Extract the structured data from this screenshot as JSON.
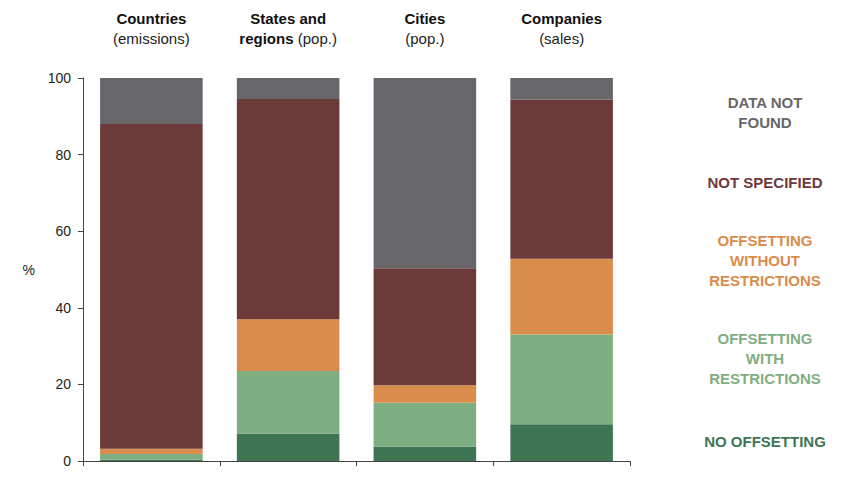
{
  "chart_data": {
    "type": "bar",
    "stacked": true,
    "legend": "right",
    "grid": false,
    "ylabel": "%",
    "categories": [
      "Countries\n(emissions)",
      "States and\nregions (pop.)",
      "Cities\n(pop.)",
      "Companies\n(sales)"
    ],
    "ylim": [
      0,
      100
    ],
    "yticks": [
      0,
      20,
      40,
      60,
      80,
      100
    ],
    "series": [
      {
        "name": "NO OFFSETTING",
        "color": "#3e7553",
        "values": [
          0.3,
          7.2,
          3.8,
          9.6
        ]
      },
      {
        "name": "OFFSETTING\nWITH\nRESTRICTIONS",
        "color": "#80ae83",
        "values": [
          1.5,
          16.3,
          11.4,
          23.4
        ]
      },
      {
        "name": "OFFSETTING\nWITHOUT\nRESTRICTIONS",
        "color": "#d98c4c",
        "values": [
          1.4,
          13.5,
          4.6,
          19.8
        ]
      },
      {
        "name": "NOT SPECIFIED",
        "color": "#6d3a3a",
        "values": [
          84.8,
          57.5,
          30.5,
          41.6
        ]
      },
      {
        "name": "DATA NOT\nFOUND",
        "color": "#67666b",
        "values": [
          12.0,
          5.5,
          49.7,
          5.6
        ]
      }
    ]
  }
}
